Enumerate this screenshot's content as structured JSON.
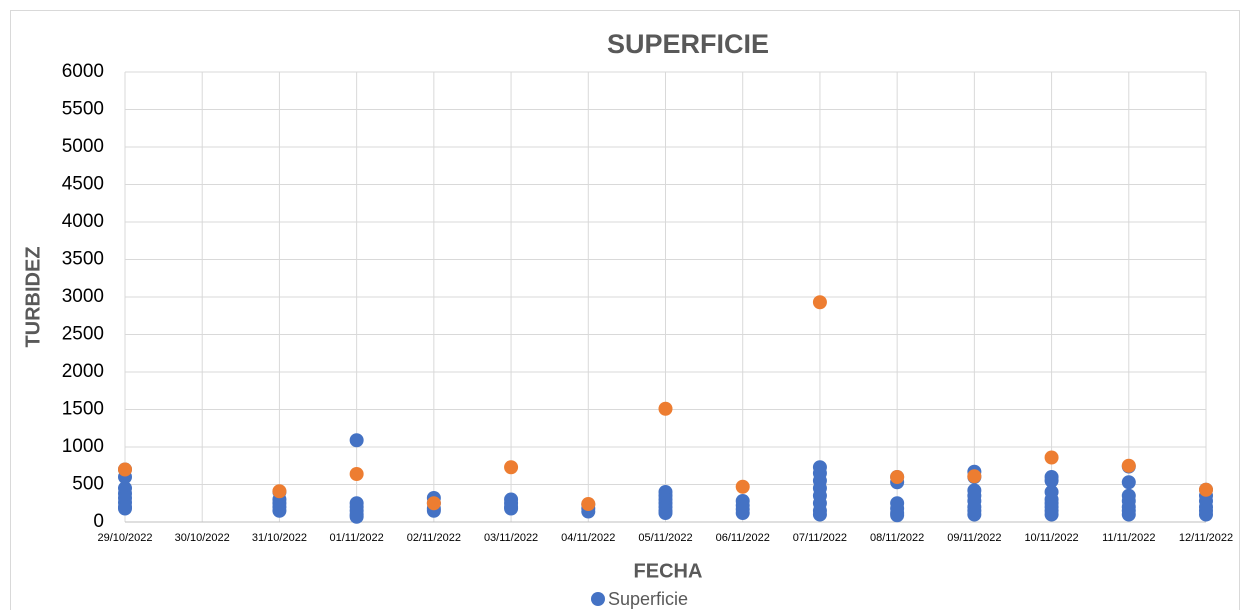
{
  "chart_data": {
    "type": "scatter",
    "title": "SUPERFICIE",
    "x_label": "FECHA",
    "y_label": "TURBIDEZ",
    "categories": [
      "29/10/2022",
      "30/10/2022",
      "31/10/2022",
      "01/11/2022",
      "02/11/2022",
      "03/11/2022",
      "04/11/2022",
      "05/11/2022",
      "06/11/2022",
      "07/11/2022",
      "08/11/2022",
      "09/11/2022",
      "10/11/2022",
      "11/11/2022",
      "12/11/2022"
    ],
    "ylim": [
      0,
      6000
    ],
    "yticks": [
      0,
      500,
      1000,
      1500,
      2000,
      2500,
      3000,
      3500,
      4000,
      4500,
      5000,
      5500,
      6000
    ],
    "grid": true,
    "legend": "bottom",
    "series": [
      {
        "name": "Superficie",
        "color": "#4472c4",
        "x": [
          "29/10/2022",
          "29/10/2022",
          "29/10/2022",
          "29/10/2022",
          "29/10/2022",
          "29/10/2022",
          "29/10/2022",
          "29/10/2022",
          "31/10/2022",
          "31/10/2022",
          "31/10/2022",
          "31/10/2022",
          "31/10/2022",
          "01/11/2022",
          "01/11/2022",
          "01/11/2022",
          "01/11/2022",
          "01/11/2022",
          "01/11/2022",
          "02/11/2022",
          "02/11/2022",
          "02/11/2022",
          "02/11/2022",
          "03/11/2022",
          "03/11/2022",
          "03/11/2022",
          "03/11/2022",
          "04/11/2022",
          "04/11/2022",
          "04/11/2022",
          "05/11/2022",
          "05/11/2022",
          "05/11/2022",
          "05/11/2022",
          "05/11/2022",
          "05/11/2022",
          "05/11/2022",
          "06/11/2022",
          "06/11/2022",
          "06/11/2022",
          "06/11/2022",
          "07/11/2022",
          "07/11/2022",
          "07/11/2022",
          "07/11/2022",
          "07/11/2022",
          "07/11/2022",
          "07/11/2022",
          "07/11/2022",
          "08/11/2022",
          "08/11/2022",
          "08/11/2022",
          "08/11/2022",
          "08/11/2022",
          "08/11/2022",
          "09/11/2022",
          "09/11/2022",
          "09/11/2022",
          "09/11/2022",
          "09/11/2022",
          "09/11/2022",
          "09/11/2022",
          "09/11/2022",
          "10/11/2022",
          "10/11/2022",
          "10/11/2022",
          "10/11/2022",
          "10/11/2022",
          "10/11/2022",
          "10/11/2022",
          "10/11/2022",
          "11/11/2022",
          "11/11/2022",
          "11/11/2022",
          "11/11/2022",
          "11/11/2022",
          "11/11/2022",
          "11/11/2022",
          "12/11/2022",
          "12/11/2022",
          "12/11/2022",
          "12/11/2022",
          "12/11/2022",
          "12/11/2022"
        ],
        "values": [
          700,
          600,
          450,
          380,
          320,
          260,
          200,
          180,
          400,
          300,
          250,
          200,
          150,
          1090,
          250,
          200,
          150,
          100,
          70,
          320,
          250,
          180,
          150,
          300,
          250,
          200,
          180,
          230,
          180,
          140,
          400,
          350,
          300,
          250,
          200,
          150,
          120,
          280,
          220,
          170,
          120,
          730,
          650,
          550,
          450,
          350,
          250,
          150,
          100,
          600,
          530,
          250,
          180,
          120,
          90,
          670,
          600,
          420,
          350,
          280,
          200,
          150,
          100,
          600,
          550,
          400,
          300,
          250,
          200,
          150,
          100,
          740,
          530,
          350,
          280,
          200,
          150,
          100,
          430,
          350,
          280,
          200,
          150,
          100
        ]
      },
      {
        "color": "#ed7d31",
        "x": [
          "29/10/2022",
          "31/10/2022",
          "01/11/2022",
          "02/11/2022",
          "03/11/2022",
          "04/11/2022",
          "05/11/2022",
          "06/11/2022",
          "07/11/2022",
          "08/11/2022",
          "09/11/2022",
          "10/11/2022",
          "11/11/2022",
          "12/11/2022"
        ],
        "values": [
          700,
          410,
          640,
          250,
          730,
          240,
          1510,
          470,
          2930,
          600,
          610,
          860,
          750,
          430
        ]
      }
    ]
  }
}
